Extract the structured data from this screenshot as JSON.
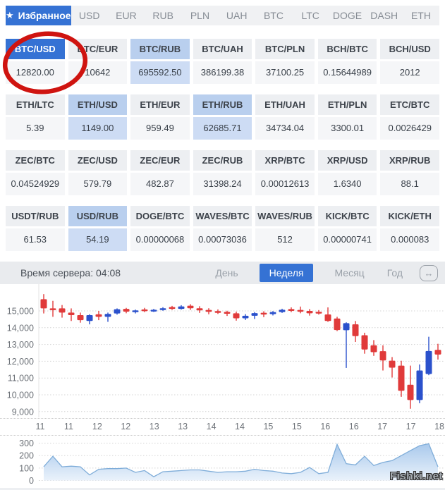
{
  "tabs": {
    "items": [
      {
        "name": "favorites",
        "label": "Избранное",
        "icon": "★",
        "selected": true
      },
      {
        "name": "usd",
        "label": "USD"
      },
      {
        "name": "eur",
        "label": "EUR"
      },
      {
        "name": "rub",
        "label": "RUB"
      },
      {
        "name": "pln",
        "label": "PLN"
      },
      {
        "name": "uah",
        "label": "UAH"
      },
      {
        "name": "btc",
        "label": "BTC"
      },
      {
        "name": "ltc",
        "label": "LTC"
      },
      {
        "name": "doge",
        "label": "DOGE"
      },
      {
        "name": "dash",
        "label": "DASH"
      },
      {
        "name": "eth",
        "label": "ETH"
      }
    ]
  },
  "rates": {
    "rows": [
      [
        {
          "pair": "BTC/USD",
          "value": "12820.00",
          "state": "selected",
          "circled": true
        },
        {
          "pair": "BTC/EUR",
          "value": "10642",
          "state": "normal"
        },
        {
          "pair": "BTC/RUB",
          "value": "695592.50",
          "state": "highlight"
        },
        {
          "pair": "BTC/UAH",
          "value": "386199.38",
          "state": "normal"
        },
        {
          "pair": "BTC/PLN",
          "value": "37100.25",
          "state": "normal"
        },
        {
          "pair": "BCH/BTC",
          "value": "0.15644989",
          "state": "normal"
        },
        {
          "pair": "BCH/USD",
          "value": "2012",
          "state": "normal"
        }
      ],
      [
        {
          "pair": "ETH/LTC",
          "value": "5.39",
          "state": "normal"
        },
        {
          "pair": "ETH/USD",
          "value": "1149.00",
          "state": "highlight"
        },
        {
          "pair": "ETH/EUR",
          "value": "959.49",
          "state": "normal"
        },
        {
          "pair": "ETH/RUB",
          "value": "62685.71",
          "state": "highlight"
        },
        {
          "pair": "ETH/UAH",
          "value": "34734.04",
          "state": "normal"
        },
        {
          "pair": "ETH/PLN",
          "value": "3300.01",
          "state": "normal"
        },
        {
          "pair": "ETC/BTC",
          "value": "0.0026429",
          "state": "normal"
        }
      ],
      [
        {
          "pair": "ZEC/BTC",
          "value": "0.04524929",
          "state": "normal"
        },
        {
          "pair": "ZEC/USD",
          "value": "579.79",
          "state": "normal"
        },
        {
          "pair": "ZEC/EUR",
          "value": "482.87",
          "state": "normal"
        },
        {
          "pair": "ZEC/RUB",
          "value": "31398.24",
          "state": "normal"
        },
        {
          "pair": "XRP/BTC",
          "value": "0.00012613",
          "state": "normal"
        },
        {
          "pair": "XRP/USD",
          "value": "1.6340",
          "state": "normal"
        },
        {
          "pair": "XRP/RUB",
          "value": "88.1",
          "state": "normal"
        }
      ],
      [
        {
          "pair": "USDT/RUB",
          "value": "61.53",
          "state": "normal"
        },
        {
          "pair": "USD/RUB",
          "value": "54.19",
          "state": "highlight"
        },
        {
          "pair": "DOGE/BTC",
          "value": "0.00000068",
          "state": "normal"
        },
        {
          "pair": "WAVES/BTC",
          "value": "0.00073036",
          "state": "normal"
        },
        {
          "pair": "WAVES/RUB",
          "value": "512",
          "state": "normal"
        },
        {
          "pair": "KICK/BTC",
          "value": "0.00000741",
          "state": "normal"
        },
        {
          "pair": "KICK/ETH",
          "value": "0.000083",
          "state": "normal"
        }
      ]
    ]
  },
  "toolbar": {
    "server_time": "Время сервера: 04:08",
    "ranges": [
      {
        "name": "day",
        "label": "День"
      },
      {
        "name": "week",
        "label": "Неделя",
        "selected": true
      },
      {
        "name": "month",
        "label": "Месяц"
      },
      {
        "name": "year",
        "label": "Год"
      }
    ],
    "expand_icon_glyph": "↔"
  },
  "chart_data": {
    "type": "candlestick",
    "pair": "BTC/USD",
    "price": {
      "y_ticks": [
        "15,000",
        "14,000",
        "13,000",
        "12,000",
        "11,000",
        "10,000",
        "9,000"
      ],
      "y_tick_values": [
        15000,
        14000,
        13000,
        12000,
        11000,
        10000,
        9000
      ],
      "x_labels": [
        "11",
        "11",
        "12",
        "12",
        "13",
        "13",
        "14",
        "14",
        "15",
        "15",
        "16",
        "16",
        "17",
        "17",
        "18"
      ],
      "grid": "dotted",
      "candles_ohlc": [
        [
          15700,
          16000,
          14850,
          15150
        ],
        [
          15150,
          15600,
          14650,
          15050
        ],
        [
          15150,
          15350,
          14600,
          14900
        ],
        [
          14900,
          15150,
          14400,
          14750
        ],
        [
          14750,
          14900,
          14300,
          14450
        ],
        [
          14400,
          14800,
          14200,
          14750
        ],
        [
          14800,
          15000,
          14450,
          14650
        ],
        [
          14650,
          14900,
          14350,
          14820
        ],
        [
          14850,
          15150,
          14780,
          15100
        ],
        [
          15120,
          15180,
          14860,
          14960
        ],
        [
          14940,
          15080,
          14850,
          15030
        ],
        [
          15090,
          15180,
          14930,
          15010
        ],
        [
          15000,
          15120,
          14940,
          15070
        ],
        [
          15070,
          15220,
          15010,
          15160
        ],
        [
          15230,
          15300,
          15060,
          15120
        ],
        [
          15120,
          15340,
          15080,
          15270
        ],
        [
          15310,
          15400,
          15060,
          15160
        ],
        [
          15160,
          15280,
          14880,
          15030
        ],
        [
          15060,
          15160,
          14800,
          14950
        ],
        [
          14990,
          15090,
          14820,
          14890
        ],
        [
          14940,
          15010,
          14700,
          14830
        ],
        [
          14860,
          14960,
          14420,
          14560
        ],
        [
          14560,
          14810,
          14460,
          14710
        ],
        [
          14710,
          14930,
          14520,
          14870
        ],
        [
          14890,
          14980,
          14630,
          14800
        ],
        [
          14810,
          14990,
          14730,
          14930
        ],
        [
          14930,
          15130,
          14880,
          15070
        ],
        [
          15110,
          15210,
          14930,
          15000
        ],
        [
          15060,
          15260,
          14860,
          14970
        ],
        [
          15000,
          15110,
          14720,
          14860
        ],
        [
          14950,
          15050,
          14780,
          14840
        ],
        [
          14790,
          15210,
          14350,
          14400
        ],
        [
          14550,
          14650,
          13800,
          13860
        ],
        [
          13850,
          14320,
          11600,
          14270
        ],
        [
          14200,
          14400,
          13150,
          13500
        ],
        [
          13550,
          13700,
          12450,
          12700
        ],
        [
          12950,
          13260,
          12320,
          12540
        ],
        [
          12600,
          12950,
          11450,
          12050
        ],
        [
          12030,
          12250,
          11030,
          11620
        ],
        [
          11740,
          12030,
          9880,
          10240
        ],
        [
          10600,
          11740,
          9170,
          9690
        ],
        [
          9690,
          11810,
          9500,
          11450
        ],
        [
          11240,
          13460,
          11170,
          12610
        ],
        [
          12680,
          13040,
          12100,
          12400
        ]
      ]
    },
    "volume": {
      "y_ticks": [
        "300",
        "200",
        "100",
        "0"
      ],
      "y_tick_values": [
        300,
        200,
        100,
        0
      ],
      "values": [
        110,
        195,
        110,
        115,
        110,
        45,
        90,
        95,
        95,
        100,
        65,
        80,
        30,
        70,
        75,
        80,
        85,
        85,
        75,
        65,
        70,
        70,
        75,
        90,
        80,
        75,
        60,
        55,
        65,
        105,
        55,
        65,
        290,
        135,
        125,
        195,
        120,
        145,
        160,
        200,
        240,
        280,
        295,
        110
      ]
    }
  },
  "colors": {
    "accent": "#3572d4",
    "candle_up": "#2b51cc",
    "candle_down": "#e03a3a",
    "highlight_header": "#b9cfee",
    "highlight_value": "#cddcf4",
    "volume_line": "#7fadd9",
    "volume_fill_top": "#a9c9ec",
    "volume_fill_bottom": "#eaf2fb",
    "annotation_red": "#cf1410"
  },
  "watermark": "Fishki.net"
}
